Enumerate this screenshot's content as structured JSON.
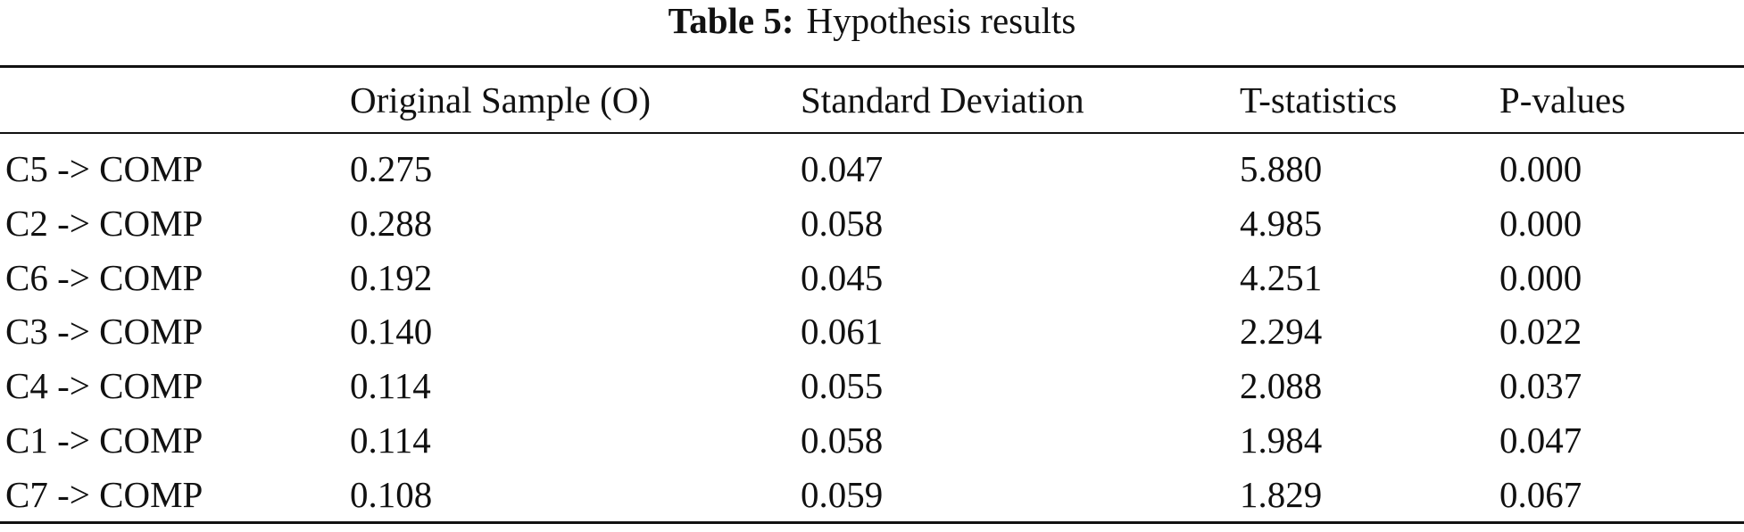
{
  "caption": {
    "label": "Table 5:",
    "title": "Hypothesis results"
  },
  "table": {
    "header": [
      "Original Sample (O)",
      "Standard Deviation",
      "T-statistics",
      "P-values"
    ],
    "rows": [
      [
        "C5 -> COMP",
        "0.275",
        "0.047",
        "5.880",
        "0.000"
      ],
      [
        "C2 -> COMP",
        "0.288",
        "0.058",
        "4.985",
        "0.000"
      ],
      [
        "C6 -> COMP",
        "0.192",
        "0.045",
        "4.251",
        "0.000"
      ],
      [
        "C3 -> COMP",
        "0.140",
        "0.061",
        "2.294",
        "0.022"
      ],
      [
        "C4 -> COMP",
        "0.114",
        "0.055",
        "2.088",
        "0.037"
      ],
      [
        "C1 -> COMP",
        "0.114",
        "0.058",
        "1.984",
        "0.047"
      ],
      [
        "C7 -> COMP",
        "0.108",
        "0.059",
        "1.829",
        "0.067"
      ]
    ]
  }
}
